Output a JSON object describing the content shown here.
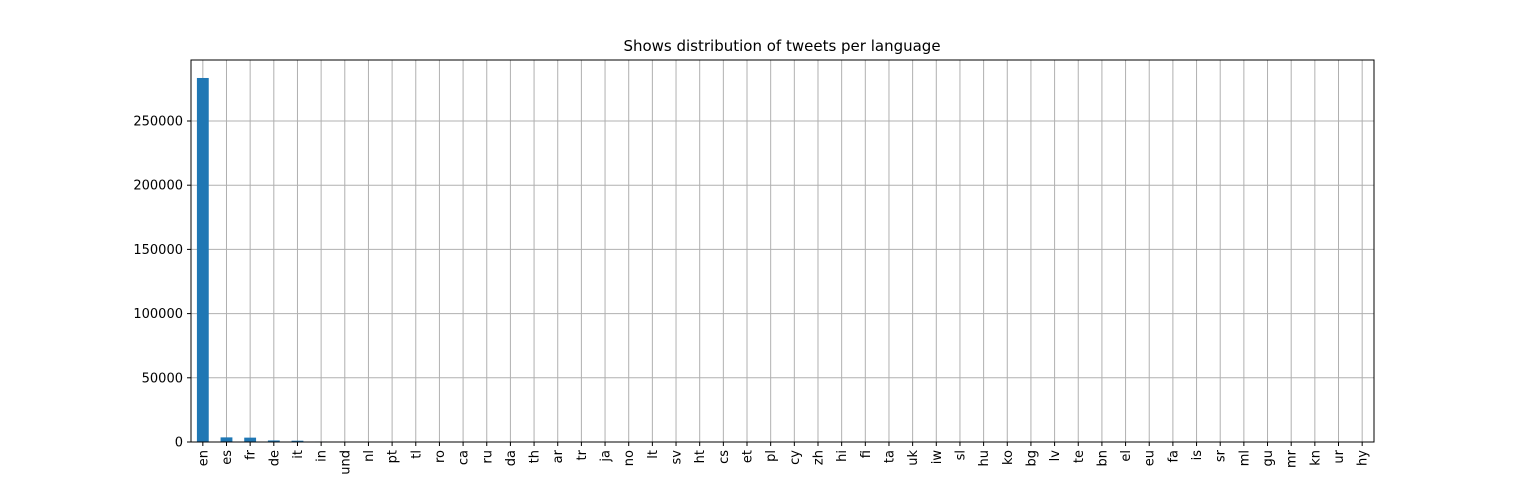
{
  "chart_data": {
    "type": "bar",
    "title": "Shows distribution of tweets per language",
    "xlabel": "",
    "ylabel": "",
    "categories": [
      "en",
      "es",
      "fr",
      "de",
      "it",
      "in",
      "und",
      "nl",
      "pt",
      "tl",
      "ro",
      "ca",
      "ru",
      "da",
      "th",
      "ar",
      "tr",
      "ja",
      "no",
      "lt",
      "sv",
      "ht",
      "cs",
      "et",
      "pl",
      "cy",
      "zh",
      "hi",
      "fi",
      "ta",
      "uk",
      "iw",
      "sl",
      "hu",
      "ko",
      "bg",
      "lv",
      "te",
      "bn",
      "el",
      "eu",
      "fa",
      "is",
      "sr",
      "ml",
      "gu",
      "mr",
      "kn",
      "ur",
      "hy"
    ],
    "values": [
      283500,
      3600,
      3400,
      1200,
      1000,
      400,
      300,
      250,
      200,
      180,
      150,
      120,
      100,
      90,
      80,
      70,
      60,
      50,
      45,
      40,
      35,
      30,
      28,
      25,
      22,
      20,
      18,
      16,
      14,
      12,
      10,
      9,
      8,
      7,
      6,
      5,
      5,
      4,
      4,
      3,
      3,
      3,
      2,
      2,
      2,
      2,
      1,
      1,
      1,
      1
    ],
    "ylim": [
      0,
      297500
    ],
    "yticks": [
      0,
      50000,
      100000,
      150000,
      200000,
      250000
    ],
    "grid": true,
    "bar_color": "#1f77b4",
    "grid_color": "#b0b0b0"
  }
}
